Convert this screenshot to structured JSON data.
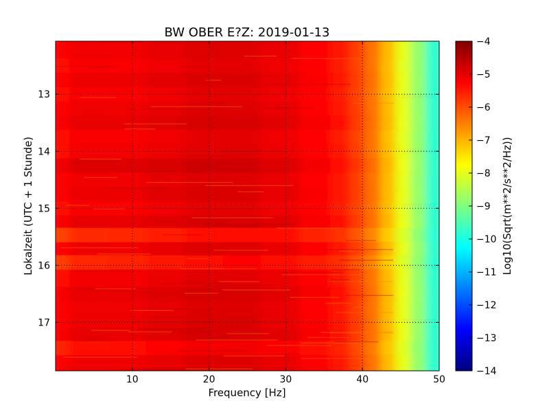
{
  "chart_data": {
    "type": "heatmap",
    "title": "BW OBER E?Z: 2019-01-13",
    "xlabel": "Frequency [Hz]",
    "ylabel": "Lokalzeit (UTC + 1 Stunde)",
    "xlim": [
      0,
      50
    ],
    "ylim": [
      17.85,
      12.07
    ],
    "xticks": [
      10,
      20,
      30,
      40,
      50
    ],
    "yticks": [
      13,
      14,
      15,
      16,
      17
    ],
    "grid": true,
    "colormap": "jet",
    "colorbar": {
      "label": "Log10(Sqrt(m**2/s**2/Hz))",
      "range": [
        -14,
        -4
      ],
      "ticks": [
        -4,
        -5,
        -6,
        -7,
        -8,
        -9,
        -10,
        -11,
        -12,
        -13,
        -14
      ]
    },
    "x": [
      0,
      5,
      10,
      15,
      20,
      25,
      30,
      35,
      38,
      40,
      42,
      44,
      46,
      48,
      50
    ],
    "y": [
      12.25,
      12.5,
      12.75,
      13.0,
      13.25,
      13.5,
      13.75,
      14.0,
      14.25,
      14.5,
      14.75,
      15.0,
      15.25,
      15.44,
      15.75,
      15.9,
      16.25,
      16.5,
      16.75,
      17.0,
      17.25,
      17.4,
      17.75
    ],
    "z_profile_by_frequency": [
      -5.4,
      -5.2,
      -5.2,
      -5.1,
      -5.0,
      -5.0,
      -5.1,
      -5.3,
      -5.5,
      -5.9,
      -6.4,
      -7.1,
      -8.0,
      -8.8,
      -9.8
    ],
    "z_row_offsets": [
      0.1,
      0.0,
      0.15,
      0.0,
      0.1,
      0.2,
      0.0,
      0.05,
      0.3,
      0.1,
      0.15,
      0.0,
      0.2,
      -0.5,
      0.1,
      -0.45,
      0.05,
      0.2,
      0.1,
      0.15,
      0.2,
      -0.2,
      0.1
    ]
  }
}
